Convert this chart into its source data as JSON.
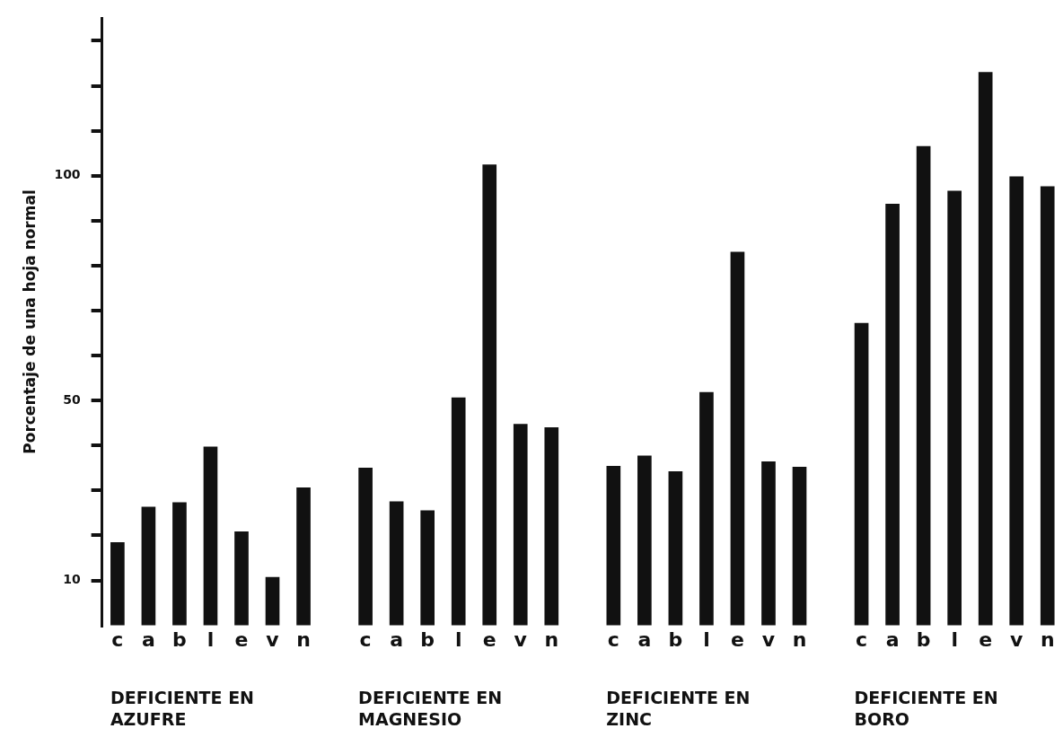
{
  "chart_data": {
    "type": "bar",
    "ylabel": "Porcentaje de una hoja normal",
    "categories": [
      "c",
      "a",
      "b",
      "l",
      "e",
      "v",
      "n",
      null,
      "c",
      "a",
      "b",
      "l",
      "e",
      "v",
      "n",
      null,
      "c",
      "a",
      "b",
      "l",
      "e",
      "v",
      "n",
      null,
      "c",
      "a",
      "b",
      "l",
      "e",
      "v",
      "n"
    ],
    "values": [
      18.4,
      26.3,
      27.3,
      39.7,
      20.8,
      10.7,
      30.6,
      null,
      35,
      27.5,
      25.5,
      50.6,
      102.4,
      44.7,
      44,
      null,
      35.4,
      37.7,
      34.2,
      51.8,
      83,
      36.4,
      35.2,
      null,
      67.2,
      93.7,
      106.5,
      96.6,
      123,
      99.8,
      97.6
    ],
    "color": "#111111",
    "ylim": [
      0,
      135
    ],
    "yticks": [
      {
        "value": 10,
        "label": "10"
      },
      {
        "value": 20,
        "label": null
      },
      {
        "value": 30,
        "label": null
      },
      {
        "value": 40,
        "label": null
      },
      {
        "value": 50,
        "label": "50"
      },
      {
        "value": 60,
        "label": null
      },
      {
        "value": 70,
        "label": null
      },
      {
        "value": 80,
        "label": null
      },
      {
        "value": 90,
        "label": null
      },
      {
        "value": 100,
        "label": "100"
      },
      {
        "value": 110,
        "label": null
      },
      {
        "value": 120,
        "label": null
      },
      {
        "value": 130,
        "label": null
      }
    ],
    "annotations": [
      "DEFICIENTE EN AZUFRE",
      "DEFICIENTE EN MAGNESIO",
      "DEFICIENTE EN ZINC",
      "DEFICIENTE EN BORO"
    ],
    "grid": false,
    "legend": false
  }
}
